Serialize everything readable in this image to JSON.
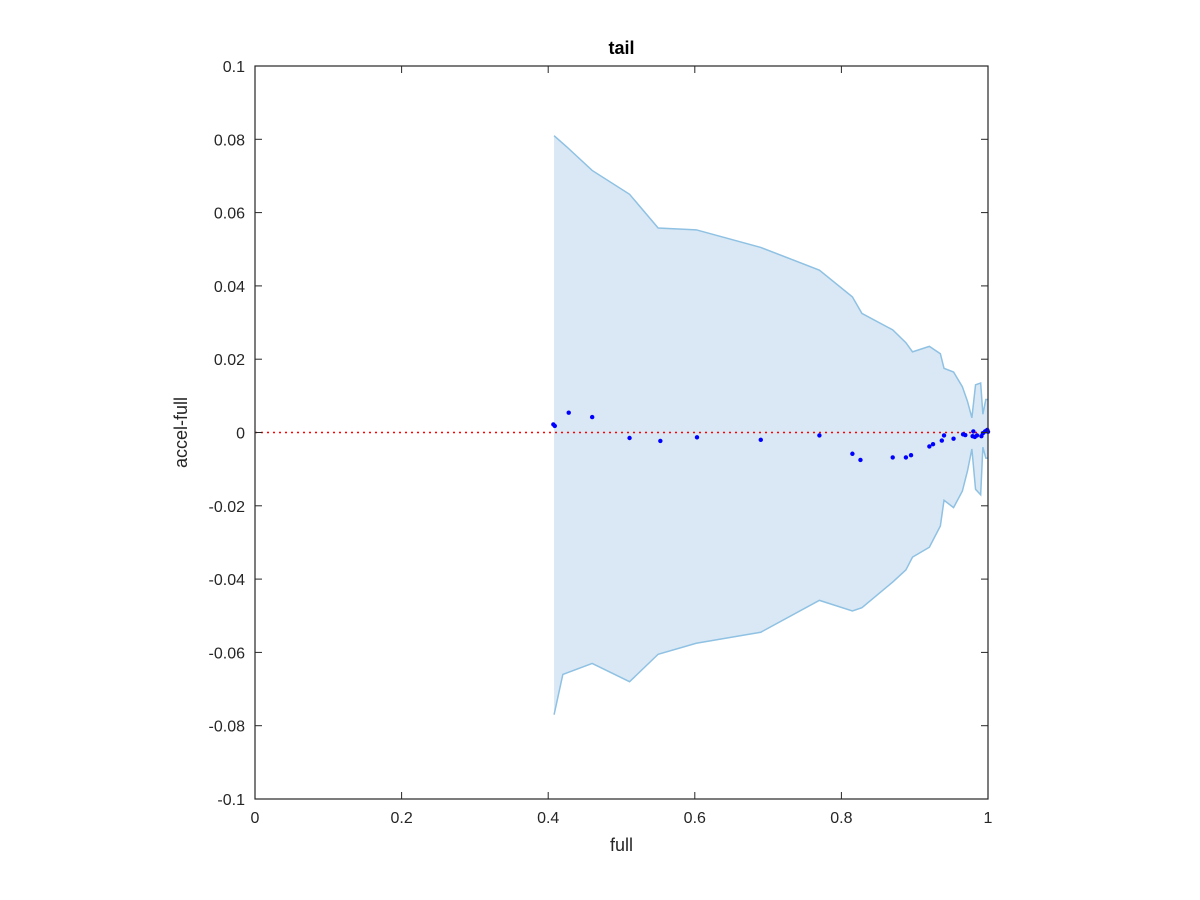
{
  "chart_data": {
    "type": "scatter",
    "title": "tail",
    "xlabel": "full",
    "ylabel": "accel-full",
    "xlim": [
      0,
      1
    ],
    "ylim": [
      -0.1,
      0.1
    ],
    "xticks": [
      0,
      0.2,
      0.4,
      0.6,
      0.8,
      1
    ],
    "xtick_labels": [
      "0",
      "0.2",
      "0.4",
      "0.6",
      "0.8",
      "1"
    ],
    "yticks": [
      -0.1,
      -0.08,
      -0.06,
      -0.04,
      -0.02,
      0,
      0.02,
      0.04,
      0.06,
      0.08,
      0.1
    ],
    "ytick_labels": [
      "-0.1",
      "-0.08",
      "-0.06",
      "-0.04",
      "-0.02",
      "0",
      "0.02",
      "0.04",
      "0.06",
      "0.08",
      "0.1"
    ],
    "grid": false,
    "reference_line": {
      "y": 0,
      "style": "dotted",
      "color": "#ff0000"
    },
    "band": {
      "fill_color": "#d9e8f4",
      "edge_color": "#8fc1e3",
      "upper": [
        [
          0.408,
          0.081
        ],
        [
          0.425,
          0.078
        ],
        [
          0.46,
          0.0715
        ],
        [
          0.511,
          0.065
        ],
        [
          0.55,
          0.0558
        ],
        [
          0.602,
          0.0553
        ],
        [
          0.69,
          0.0505
        ],
        [
          0.77,
          0.0443
        ],
        [
          0.815,
          0.037
        ],
        [
          0.828,
          0.0325
        ],
        [
          0.87,
          0.028
        ],
        [
          0.888,
          0.0245
        ],
        [
          0.897,
          0.022
        ],
        [
          0.92,
          0.0235
        ],
        [
          0.935,
          0.0215
        ],
        [
          0.94,
          0.0175
        ],
        [
          0.953,
          0.0165
        ],
        [
          0.965,
          0.0125
        ],
        [
          0.972,
          0.0085
        ],
        [
          0.978,
          0.004
        ],
        [
          0.983,
          0.013
        ],
        [
          0.99,
          0.0135
        ],
        [
          0.993,
          0.005
        ],
        [
          0.997,
          0.009
        ],
        [
          1.0,
          0.009
        ]
      ],
      "lower": [
        [
          0.408,
          -0.077
        ],
        [
          0.42,
          -0.066
        ],
        [
          0.46,
          -0.063
        ],
        [
          0.511,
          -0.068
        ],
        [
          0.55,
          -0.0605
        ],
        [
          0.602,
          -0.0575
        ],
        [
          0.69,
          -0.0545
        ],
        [
          0.77,
          -0.0458
        ],
        [
          0.815,
          -0.0487
        ],
        [
          0.828,
          -0.0478
        ],
        [
          0.87,
          -0.0408
        ],
        [
          0.888,
          -0.0375
        ],
        [
          0.897,
          -0.034
        ],
        [
          0.92,
          -0.0313
        ],
        [
          0.935,
          -0.0255
        ],
        [
          0.94,
          -0.0185
        ],
        [
          0.953,
          -0.0205
        ],
        [
          0.965,
          -0.016
        ],
        [
          0.972,
          -0.0105
        ],
        [
          0.978,
          -0.0045
        ],
        [
          0.983,
          -0.0155
        ],
        [
          0.99,
          -0.017
        ],
        [
          0.993,
          -0.004
        ],
        [
          0.997,
          -0.007
        ],
        [
          1.0,
          -0.007
        ]
      ]
    },
    "points_color": "#0000ff",
    "points": [
      [
        0.407,
        0.0022
      ],
      [
        0.409,
        0.0018
      ],
      [
        0.428,
        0.0054
      ],
      [
        0.46,
        0.0042
      ],
      [
        0.511,
        -0.0015
      ],
      [
        0.553,
        -0.0023
      ],
      [
        0.603,
        -0.0013
      ],
      [
        0.69,
        -0.002
      ],
      [
        0.77,
        -0.0008
      ],
      [
        0.815,
        -0.0058
      ],
      [
        0.826,
        -0.0075
      ],
      [
        0.87,
        -0.0068
      ],
      [
        0.888,
        -0.0068
      ],
      [
        0.895,
        -0.0062
      ],
      [
        0.92,
        -0.0038
      ],
      [
        0.925,
        -0.0032
      ],
      [
        0.937,
        -0.0022
      ],
      [
        0.94,
        -0.0008
      ],
      [
        0.953,
        -0.0017
      ],
      [
        0.966,
        -0.0005
      ],
      [
        0.969,
        -0.0007
      ],
      [
        0.979,
        -0.001
      ],
      [
        0.98,
        0.0003
      ],
      [
        0.982,
        -0.0012
      ],
      [
        0.985,
        -0.0008
      ],
      [
        0.991,
        -0.001
      ],
      [
        0.993,
        -0.0002
      ],
      [
        0.996,
        0.0003
      ],
      [
        0.998,
        0.0005
      ],
      [
        0.999,
        0.0007
      ],
      [
        1.0,
        0.0002
      ]
    ]
  }
}
